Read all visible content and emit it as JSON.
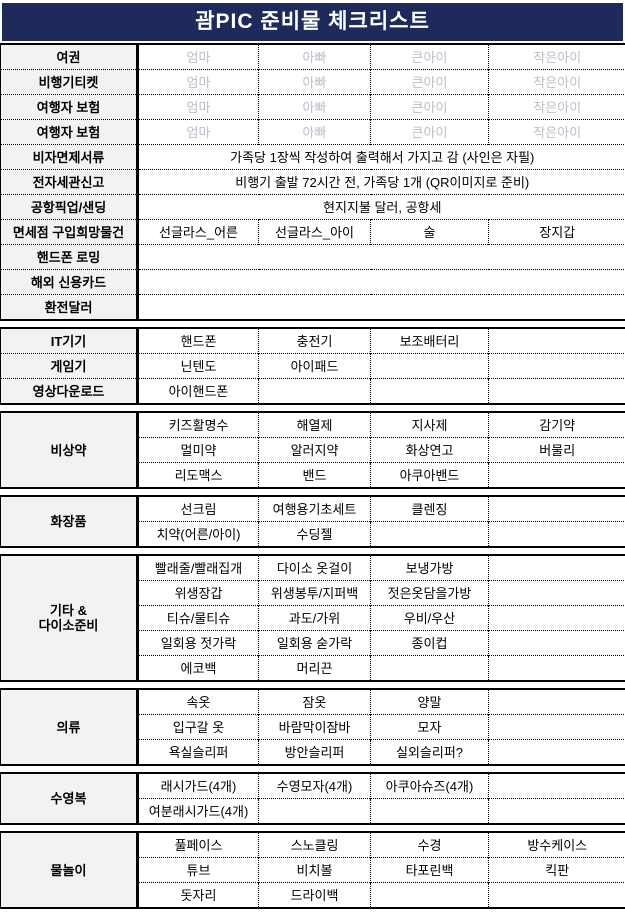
{
  "title": "괌PIC 준비물 체크리스트",
  "colors": {
    "title_bg": "#1f2a5a",
    "title_fg": "#ffffff",
    "label_column_bg": "#f2f2f2",
    "ghost_text": "#b9bec9",
    "border": "#000000"
  },
  "sections": [
    {
      "name": "travel-documents",
      "rows": [
        {
          "label": "여권",
          "ghost": true,
          "cells": [
            "엄마",
            "아빠",
            "큰아이",
            "작은아이"
          ]
        },
        {
          "label": "비행기티켓",
          "ghost": true,
          "cells": [
            "엄마",
            "아빠",
            "큰아이",
            "작은아이"
          ]
        },
        {
          "label": "여행자 보험",
          "ghost": true,
          "cells": [
            "엄마",
            "아빠",
            "큰아이",
            "작은아이"
          ]
        },
        {
          "label": "여행자 보험",
          "ghost": true,
          "cells": [
            "엄마",
            "아빠",
            "큰아이",
            "작은아이"
          ]
        },
        {
          "label": "비자면제서류",
          "merged": "가족당 1장씩 작성하여 출력해서 가지고 감 (사인은 자필)"
        },
        {
          "label": "전자세관신고",
          "merged": "비행기 출발 72시간 전, 가족당 1개 (QR이미지로 준비)"
        },
        {
          "label": "공항픽업/샌딩",
          "merged": "현지지불 달러, 공항세"
        },
        {
          "label": "면세점 구입희망물건",
          "cells": [
            "선글라스_어른",
            "선글라스_아이",
            "술",
            "장지갑"
          ]
        },
        {
          "label": "핸드폰 로밍",
          "merged": ""
        },
        {
          "label": "해외 신용카드",
          "merged": ""
        },
        {
          "label": "환전달러",
          "merged": ""
        }
      ]
    },
    {
      "name": "it-devices",
      "rows": [
        {
          "label": "IT기기",
          "cells": [
            "핸드폰",
            "충전기",
            "보조배터리",
            ""
          ]
        },
        {
          "label": "게임기",
          "cells": [
            "닌텐도",
            "아이패드",
            "",
            ""
          ]
        },
        {
          "label": "영상다운로드",
          "cells": [
            "아이핸드폰",
            "",
            "",
            ""
          ]
        }
      ]
    },
    {
      "name": "emergency-medicine",
      "label": "비상약",
      "grid": [
        [
          "키즈활명수",
          "해열제",
          "지사제",
          "감기약"
        ],
        [
          "멀미약",
          "알러지약",
          "화상연고",
          "버물리"
        ],
        [
          "리도맥스",
          "밴드",
          "아쿠아밴드",
          ""
        ]
      ]
    },
    {
      "name": "cosmetics",
      "label": "화장품",
      "grid": [
        [
          "선크림",
          "여행용기초세트",
          "클렌징",
          ""
        ],
        [
          "치약(어른/아이)",
          "수딩젤",
          "",
          ""
        ]
      ]
    },
    {
      "name": "misc-daiso",
      "label": "기타 &\n다이소준비",
      "grid": [
        [
          "빨래줄/빨래집개",
          "다이소 옷걸이",
          "보냉가방",
          ""
        ],
        [
          "위생장갑",
          "위생봉투/지퍼백",
          "젓은옷담을가방",
          ""
        ],
        [
          "티슈/물티슈",
          "과도/가위",
          "우비/우산",
          ""
        ],
        [
          "일회용 젓가락",
          "일회용 숟가락",
          "종이컵",
          ""
        ],
        [
          "에코백",
          "머리끈",
          "",
          ""
        ]
      ]
    },
    {
      "name": "clothing",
      "label": "의류",
      "grid": [
        [
          "속옷",
          "잠옷",
          "양말",
          ""
        ],
        [
          "입구갈 옷",
          "바람막이잠바",
          "모자",
          ""
        ],
        [
          "욕실슬리퍼",
          "방안슬리퍼",
          "실외슬리퍼?",
          ""
        ]
      ]
    },
    {
      "name": "swimwear",
      "label": "수영복",
      "grid": [
        [
          "래시가드(4개)",
          "수영모자(4개)",
          "아쿠아슈즈(4개)",
          ""
        ],
        [
          "여분래시가드(4개)",
          "",
          "",
          ""
        ]
      ]
    },
    {
      "name": "water-play",
      "label": "물놀이",
      "grid": [
        [
          "풀페이스",
          "스노클링",
          "수경",
          "방수케이스"
        ],
        [
          "튜브",
          "비치볼",
          "타포린백",
          "킥판"
        ],
        [
          "돗자리",
          "드라이백",
          "",
          ""
        ]
      ]
    }
  ]
}
